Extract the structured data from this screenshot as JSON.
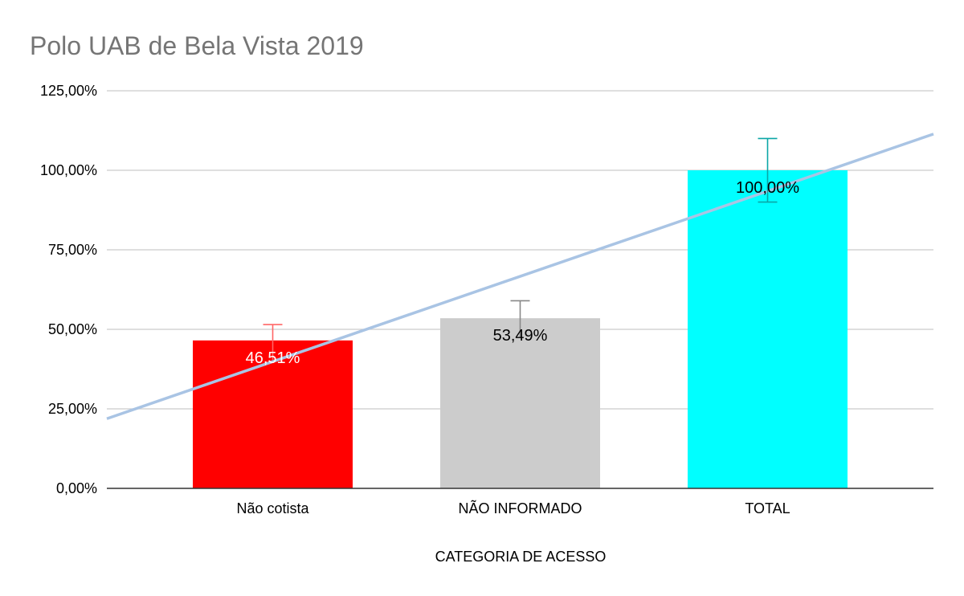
{
  "chart_data": {
    "type": "bar",
    "title": "Polo UAB de Bela Vista 2019",
    "xlabel": "CATEGORIA DE ACESSO",
    "ylabel": "",
    "categories": [
      "Não cotista",
      "NÃO INFORMADO",
      "TOTAL"
    ],
    "values": [
      46.51,
      53.49,
      100.0
    ],
    "data_labels": [
      "46,51%",
      "53,49%",
      "100,00%"
    ],
    "bar_colors": [
      "#ff0000",
      "#cccccc",
      "#00ffff"
    ],
    "label_colors": [
      "#ffffff",
      "#000000",
      "#000000"
    ],
    "error_bar_colors": [
      "#ff6666",
      "#888888",
      "#0aa6a6"
    ],
    "error_bars": [
      5,
      5.5,
      10
    ],
    "ylim": [
      0,
      125
    ],
    "yticks": [
      0,
      25,
      50,
      75,
      100,
      125
    ],
    "ytick_labels": [
      "0,00%",
      "25,00%",
      "50,00%",
      "75,00%",
      "100,00%",
      "125,00%"
    ],
    "trendline": {
      "type": "linear",
      "color": "#a9c4e4",
      "start_y": 21.9,
      "end_y": 111.4
    },
    "grid": true,
    "legend": "none"
  }
}
